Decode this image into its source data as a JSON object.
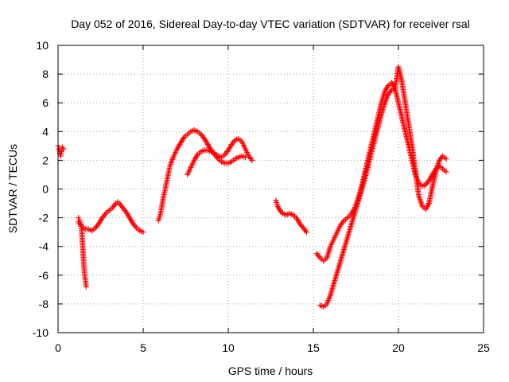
{
  "chart_data": {
    "type": "scatter",
    "title": "Day 052 of 2016, Sidereal Day-to-day VTEC variation (SDTVAR) for receiver rsal",
    "xlabel": "GPS time / hours",
    "ylabel": "SDTVAR / TECUs",
    "xlim": [
      0,
      25
    ],
    "ylim": [
      -10,
      10
    ],
    "xticks": [
      0,
      5,
      10,
      15,
      20,
      25
    ],
    "yticks": [
      -10,
      -8,
      -6,
      -4,
      -2,
      0,
      2,
      4,
      6,
      8,
      10
    ],
    "grid": true,
    "marker": "plus",
    "color": "#ff0000",
    "series": [
      {
        "segments": [
          {
            "x": [
              0.0,
              0.05,
              0.1,
              0.15,
              0.2,
              0.25,
              0.3
            ],
            "y": [
              3.0,
              2.8,
              2.5,
              2.3,
              2.6,
              2.9,
              2.8
            ]
          },
          {
            "x": [
              1.2,
              1.3,
              1.35,
              1.4,
              1.45,
              1.5,
              1.55,
              1.6,
              1.65
            ],
            "y": [
              -2.0,
              -2.3,
              -2.6,
              -3.0,
              -4.0,
              -5.0,
              -5.8,
              -6.3,
              -6.8
            ]
          },
          {
            "x": [
              1.2,
              1.4,
              1.6,
              1.8,
              2.0,
              2.2,
              2.4,
              2.6,
              2.8,
              3.0,
              3.2,
              3.4,
              3.5,
              3.6,
              3.8,
              4.0,
              4.2,
              4.4,
              4.6,
              4.8,
              5.0
            ],
            "y": [
              -2.3,
              -2.6,
              -2.8,
              -2.8,
              -2.9,
              -2.7,
              -2.4,
              -2.0,
              -1.7,
              -1.5,
              -1.3,
              -1.0,
              -0.9,
              -1.0,
              -1.3,
              -1.6,
              -2.0,
              -2.4,
              -2.7,
              -2.9,
              -3.0
            ]
          },
          {
            "x": [
              5.9,
              6.0,
              6.1,
              6.2,
              6.3,
              6.4,
              6.5,
              6.6,
              6.8,
              7.0,
              7.2,
              7.4,
              7.6,
              7.8,
              8.0,
              8.2,
              8.4,
              8.6,
              8.8,
              9.0,
              9.2,
              9.4,
              9.6,
              9.8,
              10.0,
              10.2,
              10.4,
              10.6,
              10.8,
              11.0
            ],
            "y": [
              -2.2,
              -1.8,
              -1.2,
              -0.5,
              0.0,
              0.6,
              1.2,
              1.7,
              2.3,
              2.8,
              3.2,
              3.6,
              3.8,
              4.0,
              4.1,
              4.0,
              3.8,
              3.5,
              3.1,
              2.7,
              2.4,
              2.1,
              1.9,
              1.8,
              1.8,
              1.9,
              2.1,
              2.2,
              2.3,
              2.2
            ]
          },
          {
            "x": [
              7.6,
              7.8,
              8.0,
              8.2,
              8.4,
              8.6,
              8.8,
              9.0,
              9.2,
              9.4,
              9.6,
              9.8,
              10.0,
              10.2,
              10.4,
              10.6,
              10.8,
              11.0,
              11.2,
              11.4
            ],
            "y": [
              1.0,
              1.5,
              2.0,
              2.4,
              2.6,
              2.7,
              2.7,
              2.6,
              2.5,
              2.3,
              2.2,
              2.4,
              2.7,
              3.1,
              3.4,
              3.5,
              3.3,
              2.8,
              2.3,
              2.0
            ]
          },
          {
            "x": [
              12.8,
              12.9,
              13.0,
              13.1,
              13.2,
              13.4,
              13.6,
              13.8,
              14.0,
              14.2,
              14.4,
              14.6
            ],
            "y": [
              -0.8,
              -1.2,
              -1.4,
              -1.6,
              -1.7,
              -1.8,
              -1.7,
              -1.8,
              -2.0,
              -2.4,
              -2.7,
              -3.0
            ]
          },
          {
            "x": [
              15.2,
              15.4,
              15.6,
              15.8,
              16.0,
              16.2,
              16.4,
              16.6,
              16.8,
              17.0,
              17.2,
              17.4,
              17.6,
              17.8,
              18.0,
              18.2,
              18.4,
              18.6,
              18.8,
              19.0,
              19.2,
              19.4,
              19.6,
              19.8,
              20.0,
              20.2,
              20.4,
              20.6,
              20.8,
              21.0,
              21.2,
              21.4,
              21.6,
              21.8,
              22.0,
              22.2,
              22.4,
              22.6,
              22.8
            ],
            "y": [
              -4.5,
              -4.8,
              -5.0,
              -4.8,
              -4.0,
              -3.5,
              -3.0,
              -2.5,
              -2.2,
              -2.0,
              -1.8,
              -1.4,
              -0.8,
              0.0,
              1.0,
              2.0,
              3.0,
              4.0,
              5.0,
              6.0,
              6.8,
              7.2,
              7.4,
              7.0,
              6.0,
              5.0,
              4.0,
              3.0,
              2.0,
              1.0,
              0.4,
              0.2,
              0.3,
              0.6,
              1.0,
              1.4,
              1.6,
              1.4,
              1.2
            ]
          },
          {
            "x": [
              15.4,
              15.6,
              15.8,
              16.0,
              16.2,
              16.4,
              16.6,
              16.8,
              17.0,
              17.2,
              17.4,
              17.6,
              17.8,
              18.0,
              18.2,
              18.4,
              18.6,
              18.8,
              19.0,
              19.2,
              19.4,
              19.6,
              19.8,
              20.0,
              20.2,
              20.4,
              20.6,
              20.8,
              21.0,
              21.2,
              21.4,
              21.6,
              21.8,
              22.0,
              22.2,
              22.4,
              22.6,
              22.8
            ],
            "y": [
              -8.1,
              -8.2,
              -8.0,
              -7.4,
              -6.6,
              -5.8,
              -5.0,
              -4.2,
              -3.4,
              -2.6,
              -1.8,
              -1.0,
              -0.2,
              0.6,
              1.5,
              2.5,
              3.4,
              4.3,
              5.2,
              6.0,
              6.6,
              6.9,
              7.0,
              8.5,
              7.5,
              6.0,
              4.5,
              3.0,
              1.2,
              -0.5,
              -1.2,
              -1.4,
              -1.0,
              0.2,
              1.2,
              2.0,
              2.3,
              2.1
            ]
          }
        ]
      }
    ]
  }
}
